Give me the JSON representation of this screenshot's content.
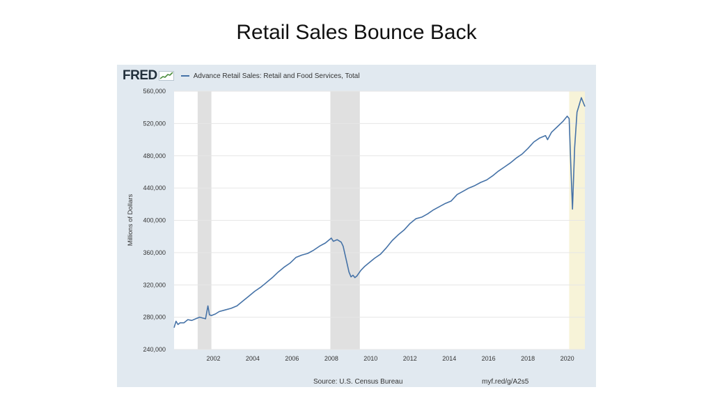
{
  "slide": {
    "title": "Retail Sales Bounce Back"
  },
  "fred": {
    "logo_text": "FRED",
    "source": "Source: U.S. Census Bureau",
    "short_url": "myf.red/g/A2s5"
  },
  "colors": {
    "line": "#4572a7",
    "recession_band": "#e0e0e0",
    "highlight_band": "#f7f3d8",
    "frame_bg": "#e1e9f0"
  },
  "chart_data": {
    "type": "line",
    "title": "",
    "xlabel": "",
    "ylabel": "Millions of Dollars",
    "xlim": [
      2000.0,
      2020.9
    ],
    "ylim": [
      240000,
      560000
    ],
    "yticks": [
      240000,
      280000,
      320000,
      360000,
      400000,
      440000,
      480000,
      520000,
      560000
    ],
    "ytick_labels": [
      "240,000",
      "280,000",
      "320,000",
      "360,000",
      "400,000",
      "440,000",
      "480,000",
      "520,000",
      "560,000"
    ],
    "xticks": [
      2002,
      2004,
      2006,
      2008,
      2010,
      2012,
      2014,
      2016,
      2018,
      2020
    ],
    "xtick_labels": [
      "2002",
      "2004",
      "2006",
      "2008",
      "2010",
      "2012",
      "2014",
      "2016",
      "2018",
      "2020"
    ],
    "grid": true,
    "legend_position": "top",
    "shaded_periods": [
      {
        "kind": "recession",
        "start": 2001.2,
        "end": 2001.9
      },
      {
        "kind": "recession",
        "start": 2007.95,
        "end": 2009.45
      },
      {
        "kind": "highlight",
        "start": 2020.1,
        "end": 2020.9
      }
    ],
    "series": [
      {
        "name": "Advance Retail Sales: Retail and Food Services, Total",
        "x": [
          2000.0,
          2000.1,
          2000.2,
          2000.3,
          2000.5,
          2000.7,
          2000.9,
          2001.1,
          2001.3,
          2001.6,
          2001.72,
          2001.8,
          2001.9,
          2002.1,
          2002.3,
          2002.6,
          2002.9,
          2003.2,
          2003.5,
          2003.8,
          2004.1,
          2004.4,
          2004.7,
          2005.0,
          2005.3,
          2005.6,
          2005.9,
          2006.2,
          2006.5,
          2006.8,
          2007.1,
          2007.4,
          2007.7,
          2007.85,
          2008.0,
          2008.1,
          2008.3,
          2008.5,
          2008.6,
          2008.75,
          2008.9,
          2009.0,
          2009.1,
          2009.2,
          2009.3,
          2009.5,
          2009.7,
          2009.9,
          2010.2,
          2010.5,
          2010.8,
          2011.1,
          2011.4,
          2011.7,
          2012.0,
          2012.3,
          2012.6,
          2012.9,
          2013.2,
          2013.5,
          2013.8,
          2014.1,
          2014.4,
          2014.7,
          2015.0,
          2015.3,
          2015.6,
          2015.9,
          2016.2,
          2016.5,
          2016.8,
          2017.1,
          2017.4,
          2017.7,
          2018.0,
          2018.3,
          2018.6,
          2018.9,
          2019.0,
          2019.2,
          2019.5,
          2019.8,
          2020.0,
          2020.1,
          2020.18,
          2020.27,
          2020.38,
          2020.5,
          2020.6,
          2020.72,
          2020.9
        ],
        "y": [
          267000,
          275000,
          271000,
          273000,
          273000,
          277000,
          276000,
          278000,
          280000,
          278000,
          294000,
          283000,
          282000,
          284000,
          287000,
          289000,
          291000,
          294000,
          300000,
          306000,
          312000,
          317000,
          323000,
          329000,
          336000,
          342000,
          347000,
          354000,
          357000,
          359000,
          363000,
          368000,
          372000,
          375000,
          378000,
          374000,
          376000,
          373000,
          368000,
          352000,
          336000,
          330000,
          332000,
          329000,
          331000,
          338000,
          343000,
          347000,
          353000,
          358000,
          366000,
          375000,
          382000,
          388000,
          396000,
          402000,
          404000,
          408000,
          413000,
          417000,
          421000,
          424000,
          432000,
          436000,
          440000,
          443000,
          447000,
          450000,
          455000,
          461000,
          466000,
          471000,
          477000,
          482000,
          489000,
          497000,
          502000,
          505000,
          500000,
          509000,
          516000,
          523000,
          529000,
          526000,
          470000,
          414000,
          490000,
          534000,
          542000,
          552000,
          541000
        ]
      }
    ]
  }
}
